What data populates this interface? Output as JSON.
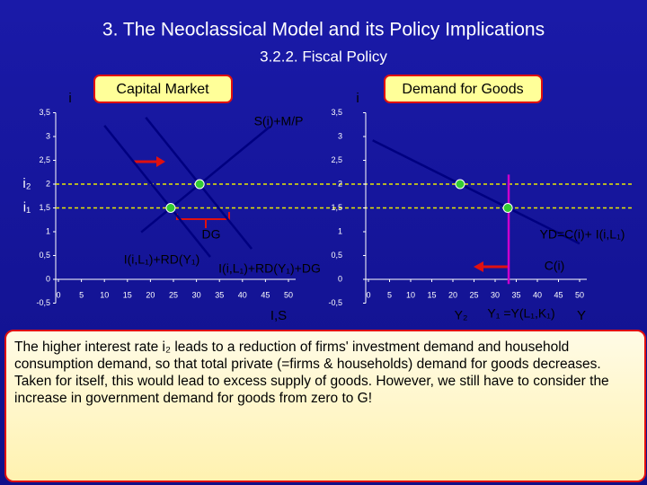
{
  "title": "3. The Neoclassical Model and its Policy Implications",
  "subtitle": "3.2.2. Fiscal Policy",
  "chart_data": [
    {
      "type": "line",
      "title": "Capital Market",
      "xlabel": "I,S",
      "ylabel": "i",
      "xlim": [
        0,
        50
      ],
      "ylim": [
        -0.5,
        3.5
      ],
      "xticks": [
        0,
        5,
        10,
        15,
        20,
        25,
        30,
        35,
        40,
        45,
        50
      ],
      "yticks": [
        {
          "value": 3.5,
          "label": "3,5"
        },
        3,
        {
          "value": 2.5,
          "label": "2,5"
        },
        2,
        {
          "value": 1.5,
          "label": "1,5"
        },
        1,
        {
          "value": 0.5,
          "label": "0,5"
        },
        0,
        {
          "value": -0.5,
          "label": "-0,5"
        }
      ],
      "series": [
        {
          "color": "#000080",
          "x": [
            18,
            46
          ],
          "values": [
            0.99,
            3.21
          ]
        },
        {
          "color": "#000080",
          "x": [
            10,
            33
          ],
          "values": [
            3.23,
            0.47
          ]
        },
        {
          "color": "#000080",
          "x": [
            19,
            42
          ],
          "values": [
            3.4,
            0.64
          ]
        },
        {
          "type": "scatter",
          "color": "#33cc33",
          "x": [
            24.4,
            30.7
          ],
          "values": [
            1.5,
            2.0
          ]
        }
      ],
      "hlines": [
        {
          "value": 2,
          "label": "i₂"
        },
        {
          "value": 1.5,
          "label": "i₁"
        }
      ],
      "annotations": [
        "S(i)+M/P",
        "DG",
        "I(i,L₁)+RD(Y₁)",
        "I(i,L₁)+RD(Y₁)+DG"
      ]
    },
    {
      "type": "line",
      "title": "Demand for Goods",
      "xlabel": "Y",
      "ylabel": "i",
      "xlim": [
        0,
        50
      ],
      "ylim": [
        -0.5,
        3.5
      ],
      "xticks": [
        0,
        5,
        10,
        15,
        20,
        25,
        30,
        35,
        40,
        45,
        50
      ],
      "yticks": [
        {
          "value": 3.5,
          "label": "3,5"
        },
        3,
        {
          "value": 2.5,
          "label": "2,5"
        },
        2,
        {
          "value": 1.5,
          "label": "1,5"
        },
        1,
        {
          "value": 0.5,
          "label": "0,5"
        },
        0,
        {
          "value": -0.5,
          "label": "-0,5"
        }
      ],
      "series": [
        {
          "color": "#000080",
          "x": [
            1,
            50
          ],
          "values": [
            2.92,
            0.75
          ]
        },
        {
          "type": "scatter",
          "color": "#33cc33",
          "x": [
            21.7,
            33
          ],
          "values": [
            2.0,
            1.5
          ]
        }
      ],
      "vline": {
        "x": 33.2,
        "y": [
          -0.1,
          2.2
        ],
        "color": "#cc00cc"
      },
      "annotations": [
        "YD=C(i)+ I(i,L₁)",
        "C(i)",
        "Y₂",
        "Y₁ =Y(L₁,K₁)"
      ]
    }
  ],
  "text": "The higher interest rate i₂ leads to a reduction of firms' investment demand and household consumption demand, so that total private (=firms & households) demand for goods decreases. Taken for itself, this would lead to excess supply of goods. However, we still have to consider the increase in government demand for goods from zero to G!"
}
